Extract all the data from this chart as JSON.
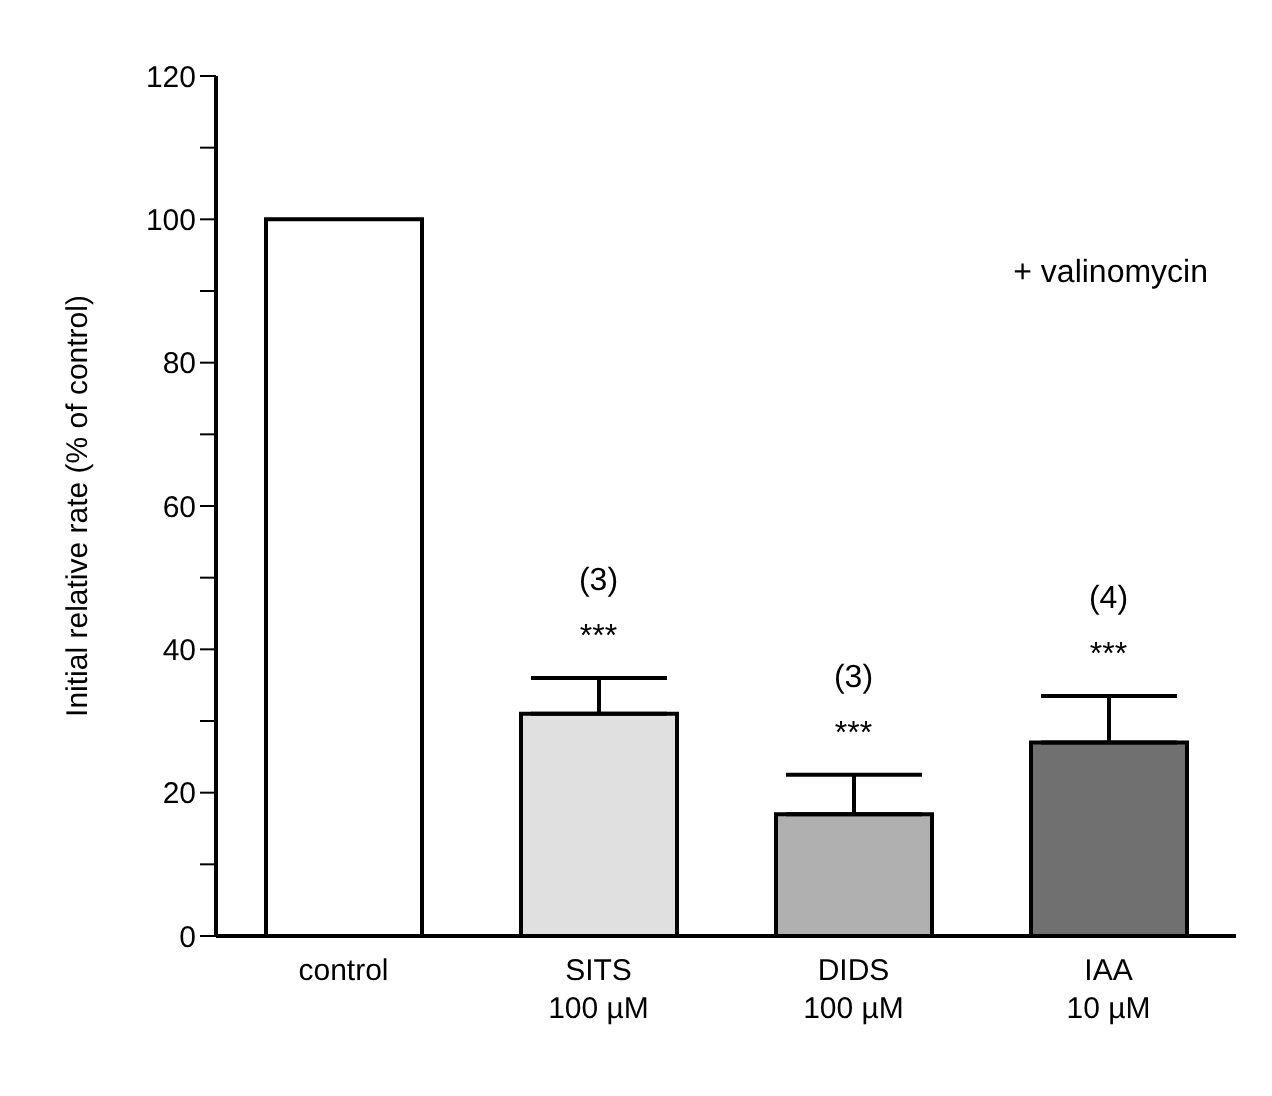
{
  "chart_data": {
    "type": "bar",
    "ylabel": "Initial relative rate (% of control)",
    "categories": [
      "control",
      "SITS 100 µM",
      "DIDS 100 µM",
      "IAA 10 µM"
    ],
    "values": [
      100,
      31,
      17,
      27
    ],
    "errors": [
      null,
      [
        31,
        36
      ],
      [
        17,
        22.5
      ],
      [
        27,
        33.5
      ]
    ],
    "colors": [
      "#ffffff",
      "#e0e0e0",
      "#b0b0b0",
      "#707070"
    ],
    "ylim": [
      0,
      120
    ],
    "yticks": [
      0,
      {
        "value": 10,
        "label": null
      },
      20,
      {
        "value": 30,
        "label": null
      },
      40,
      {
        "value": 50,
        "label": null
      },
      60,
      {
        "value": 70,
        "label": null
      },
      80,
      {
        "value": 90,
        "label": null
      },
      100,
      {
        "value": 110,
        "label": null
      },
      120
    ],
    "annotations": [
      "+ valinomycin",
      "***",
      "(3)",
      "***",
      "(3)",
      "***",
      "(4)"
    ],
    "grid": false,
    "legend": false
  }
}
